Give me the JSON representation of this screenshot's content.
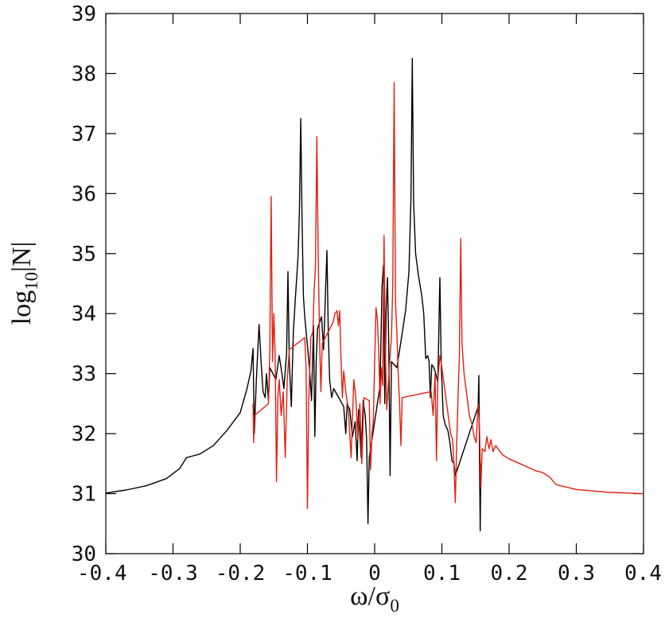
{
  "chart_data": {
    "type": "line",
    "title": "",
    "xlabel": "ω/σ",
    "xlabel_sub": "0",
    "ylabel_main": "log",
    "ylabel_sub": "10",
    "ylabel_tail": "|N|",
    "xlim": [
      -0.4,
      0.4
    ],
    "ylim": [
      30,
      39
    ],
    "xticks": [
      -0.4,
      -0.3,
      -0.2,
      -0.1,
      0,
      0.1,
      0.2,
      0.3,
      0.4
    ],
    "xtick_labels": [
      "-0.4",
      "-0.3",
      "-0.2",
      "-0.1",
      "0",
      "0.1",
      "0.2",
      "0.3",
      "0.4"
    ],
    "yticks": [
      30,
      31,
      32,
      33,
      34,
      35,
      36,
      37,
      38,
      39
    ],
    "ytick_labels": [
      "30",
      "31",
      "32",
      "33",
      "34",
      "35",
      "36",
      "37",
      "38",
      "39"
    ],
    "grid": false,
    "series": [
      {
        "color": "#000000",
        "points": [
          [
            -0.4,
            31.01
          ],
          [
            -0.37,
            31.06
          ],
          [
            -0.34,
            31.13
          ],
          [
            -0.31,
            31.25
          ],
          [
            -0.29,
            31.42
          ],
          [
            -0.28,
            31.6
          ],
          [
            -0.27,
            31.63
          ],
          [
            -0.26,
            31.66
          ],
          [
            -0.24,
            31.8
          ],
          [
            -0.22,
            32.05
          ],
          [
            -0.2,
            32.35
          ],
          [
            -0.19,
            32.75
          ],
          [
            -0.184,
            33.05
          ],
          [
            -0.181,
            33.42
          ],
          [
            -0.179,
            32.0
          ],
          [
            -0.176,
            32.9
          ],
          [
            -0.172,
            33.82
          ],
          [
            -0.169,
            33.2
          ],
          [
            -0.166,
            32.7
          ],
          [
            -0.163,
            32.6
          ],
          [
            -0.161,
            33.0
          ],
          [
            -0.158,
            32.55
          ],
          [
            -0.156,
            33.1
          ],
          [
            -0.147,
            32.9
          ],
          [
            -0.142,
            33.3
          ],
          [
            -0.138,
            33.0
          ],
          [
            -0.135,
            32.75
          ],
          [
            -0.131,
            33.35
          ],
          [
            -0.129,
            34.7
          ],
          [
            -0.127,
            33.2
          ],
          [
            -0.124,
            32.45
          ],
          [
            -0.121,
            33.7
          ],
          [
            -0.118,
            34.25
          ],
          [
            -0.114,
            34.95
          ],
          [
            -0.112,
            35.7
          ],
          [
            -0.11,
            37.25
          ],
          [
            -0.108,
            35.6
          ],
          [
            -0.106,
            34.3
          ],
          [
            -0.104,
            33.95
          ],
          [
            -0.097,
            33.1
          ],
          [
            -0.094,
            32.55
          ],
          [
            -0.091,
            33.8
          ],
          [
            -0.089,
            31.95
          ],
          [
            -0.087,
            33.2
          ],
          [
            -0.085,
            33.75
          ],
          [
            -0.079,
            33.95
          ],
          [
            -0.076,
            33.4
          ],
          [
            -0.073,
            34.4
          ],
          [
            -0.071,
            35.05
          ],
          [
            -0.069,
            33.7
          ],
          [
            -0.067,
            32.9
          ],
          [
            -0.064,
            32.6
          ],
          [
            -0.061,
            32.75
          ],
          [
            -0.046,
            32.45
          ],
          [
            -0.043,
            32.0
          ],
          [
            -0.041,
            32.5
          ],
          [
            -0.037,
            32.4
          ],
          [
            -0.033,
            31.95
          ],
          [
            -0.029,
            32.2
          ],
          [
            -0.026,
            31.55
          ],
          [
            -0.024,
            32.4
          ],
          [
            -0.02,
            31.6
          ],
          [
            -0.017,
            32.55
          ],
          [
            -0.014,
            32.3
          ],
          [
            -0.012,
            31.9
          ],
          [
            -0.01,
            30.5
          ],
          [
            -0.008,
            31.6
          ],
          [
            0.008,
            32.8
          ],
          [
            0.011,
            34.45
          ],
          [
            0.013,
            34.8
          ],
          [
            0.015,
            32.5
          ],
          [
            0.017,
            34.05
          ],
          [
            0.019,
            34.6
          ],
          [
            0.021,
            33.5
          ],
          [
            0.023,
            31.3
          ],
          [
            0.025,
            33.2
          ],
          [
            0.033,
            33.1
          ],
          [
            0.04,
            33.6
          ],
          [
            0.046,
            34.05
          ],
          [
            0.051,
            34.7
          ],
          [
            0.054,
            35.9
          ],
          [
            0.056,
            38.25
          ],
          [
            0.058,
            35.85
          ],
          [
            0.061,
            35.0
          ],
          [
            0.065,
            34.65
          ],
          [
            0.07,
            34.3
          ],
          [
            0.073,
            34.0
          ],
          [
            0.076,
            33.25
          ],
          [
            0.079,
            33.3
          ],
          [
            0.081,
            33.2
          ],
          [
            0.083,
            32.6
          ],
          [
            0.085,
            33.15
          ],
          [
            0.088,
            33.1
          ],
          [
            0.091,
            33.0
          ],
          [
            0.094,
            32.85
          ],
          [
            0.097,
            34.6
          ],
          [
            0.099,
            33.15
          ],
          [
            0.102,
            32.3
          ],
          [
            0.105,
            32.15
          ],
          [
            0.109,
            32.05
          ],
          [
            0.112,
            31.85
          ],
          [
            0.115,
            31.55
          ],
          [
            0.118,
            31.5
          ],
          [
            0.12,
            31.3
          ],
          [
            0.154,
            32.45
          ],
          [
            0.155,
            32.97
          ],
          [
            0.156,
            31.6
          ],
          [
            0.157,
            30.38
          ],
          [
            0.158,
            31.5
          ]
        ]
      },
      {
        "color": "#e02010",
        "points": [
          [
            -0.181,
            32.5
          ],
          [
            -0.18,
            31.85
          ],
          [
            -0.179,
            32.3
          ],
          [
            -0.158,
            32.5
          ],
          [
            -0.156,
            33.4
          ],
          [
            -0.154,
            35.95
          ],
          [
            -0.152,
            33.2
          ],
          [
            -0.15,
            34.0
          ],
          [
            -0.148,
            33.3
          ],
          [
            -0.146,
            31.2
          ],
          [
            -0.144,
            32.6
          ],
          [
            -0.142,
            32.9
          ],
          [
            -0.139,
            32.3
          ],
          [
            -0.136,
            32.7
          ],
          [
            -0.133,
            31.6
          ],
          [
            -0.13,
            32.9
          ],
          [
            -0.127,
            33.4
          ],
          [
            -0.104,
            33.6
          ],
          [
            -0.102,
            33.1
          ],
          [
            -0.1,
            30.75
          ],
          [
            -0.098,
            32.6
          ],
          [
            -0.095,
            33.6
          ],
          [
            -0.092,
            33.7
          ],
          [
            -0.09,
            34.4
          ],
          [
            -0.088,
            34.8
          ],
          [
            -0.086,
            36.95
          ],
          [
            -0.084,
            35.0
          ],
          [
            -0.082,
            33.6
          ],
          [
            -0.08,
            32.7
          ],
          [
            -0.078,
            33.5
          ],
          [
            -0.062,
            33.85
          ],
          [
            -0.059,
            34.0
          ],
          [
            -0.056,
            34.05
          ],
          [
            -0.054,
            33.8
          ],
          [
            -0.052,
            34.05
          ],
          [
            -0.05,
            33.2
          ],
          [
            -0.048,
            32.6
          ],
          [
            -0.046,
            33.05
          ],
          [
            -0.043,
            32.7
          ],
          [
            -0.039,
            32.4
          ],
          [
            -0.035,
            31.6
          ],
          [
            -0.031,
            32.9
          ],
          [
            -0.028,
            32.6
          ],
          [
            -0.025,
            31.9
          ],
          [
            -0.022,
            32.5
          ],
          [
            -0.019,
            31.5
          ],
          [
            -0.016,
            32.6
          ],
          [
            -0.008,
            32.55
          ],
          [
            -0.006,
            31.4
          ],
          [
            -0.004,
            32.0
          ],
          [
            -0.002,
            32.2
          ],
          [
            0.0,
            33.2
          ],
          [
            0.002,
            34.1
          ],
          [
            0.004,
            33.9
          ],
          [
            0.006,
            33.4
          ],
          [
            0.008,
            32.5
          ],
          [
            0.01,
            33.1
          ],
          [
            0.012,
            32.8
          ],
          [
            0.014,
            35.3
          ],
          [
            0.016,
            33.3
          ],
          [
            0.018,
            32.4
          ],
          [
            0.023,
            33.3
          ],
          [
            0.025,
            33.6
          ],
          [
            0.027,
            34.5
          ],
          [
            0.029,
            37.85
          ],
          [
            0.031,
            34.2
          ],
          [
            0.033,
            33.7
          ],
          [
            0.035,
            33.0
          ],
          [
            0.037,
            32.5
          ],
          [
            0.039,
            31.8
          ],
          [
            0.041,
            32.6
          ],
          [
            0.084,
            32.7
          ],
          [
            0.087,
            32.3
          ],
          [
            0.09,
            33.0
          ],
          [
            0.092,
            31.55
          ],
          [
            0.094,
            32.9
          ],
          [
            0.097,
            33.3
          ],
          [
            0.1,
            33.1
          ],
          [
            0.113,
            32.0
          ],
          [
            0.116,
            31.9
          ],
          [
            0.118,
            31.5
          ],
          [
            0.12,
            30.85
          ],
          [
            0.122,
            31.8
          ],
          [
            0.124,
            32.6
          ],
          [
            0.126,
            33.3
          ],
          [
            0.128,
            35.25
          ],
          [
            0.13,
            33.5
          ],
          [
            0.133,
            33.0
          ],
          [
            0.137,
            32.65
          ],
          [
            0.141,
            32.3
          ],
          [
            0.145,
            32.15
          ],
          [
            0.148,
            31.95
          ],
          [
            0.151,
            31.85
          ],
          [
            0.154,
            32.5
          ],
          [
            0.156,
            32.1
          ],
          [
            0.158,
            31.1
          ],
          [
            0.16,
            31.75
          ],
          [
            0.164,
            31.7
          ],
          [
            0.167,
            31.95
          ],
          [
            0.17,
            31.75
          ],
          [
            0.173,
            31.9
          ],
          [
            0.176,
            31.7
          ],
          [
            0.18,
            31.8
          ],
          [
            0.19,
            31.65
          ],
          [
            0.2,
            31.58
          ],
          [
            0.22,
            31.48
          ],
          [
            0.24,
            31.38
          ],
          [
            0.25,
            31.35
          ],
          [
            0.26,
            31.28
          ],
          [
            0.27,
            31.15
          ],
          [
            0.3,
            31.07
          ],
          [
            0.35,
            31.02
          ],
          [
            0.4,
            31.0
          ]
        ]
      }
    ]
  }
}
